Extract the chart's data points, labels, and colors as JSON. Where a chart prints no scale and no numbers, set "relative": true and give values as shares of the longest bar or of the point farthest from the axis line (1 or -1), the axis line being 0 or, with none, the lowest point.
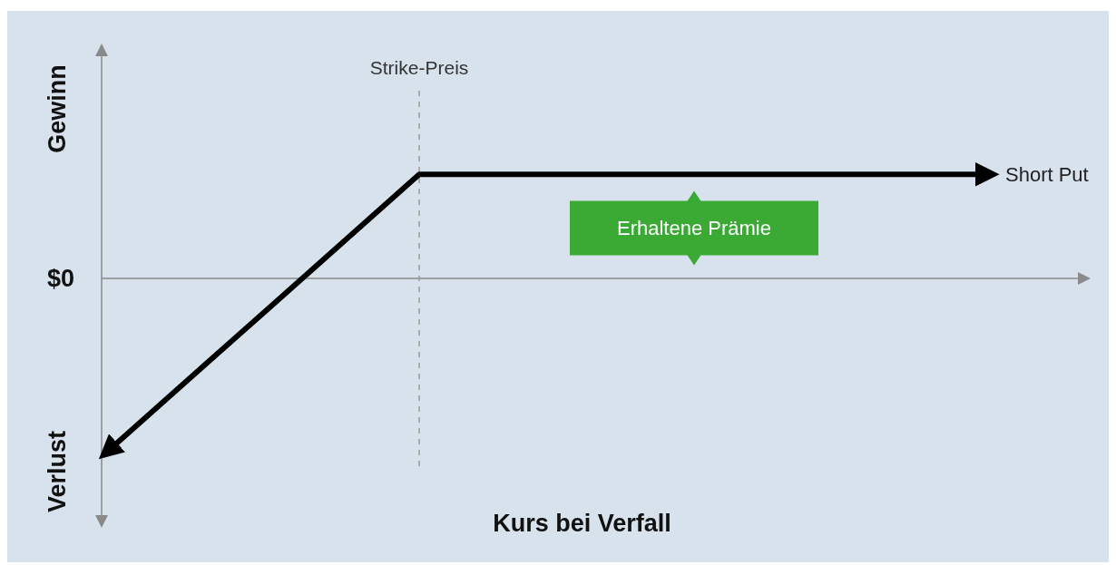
{
  "chart_data": {
    "type": "line",
    "relative": true,
    "xlabel": "Kurs bei Verfall",
    "line_style": "solid",
    "marker": "none",
    "categories": [
      null,
      null,
      null,
      null,
      null,
      null,
      null,
      null,
      null,
      null,
      null,
      null,
      null,
      null,
      null,
      null,
      null,
      null
    ],
    "series": [
      {
        "name": "Short Put",
        "color": "#000000",
        "values": [
          -1,
          -0.73,
          -0.46,
          -0.19,
          0.08,
          0.35,
          0.62,
          0.62,
          0.62,
          0.62,
          0.62,
          0.62,
          0.62,
          0.62,
          0.62,
          0.62,
          0.62,
          0.62
        ]
      }
    ],
    "annotations": [
      "Gewinn",
      "Verlust",
      "$0",
      "Erhaltene Prämie",
      "Strike-Preis"
    ]
  }
}
